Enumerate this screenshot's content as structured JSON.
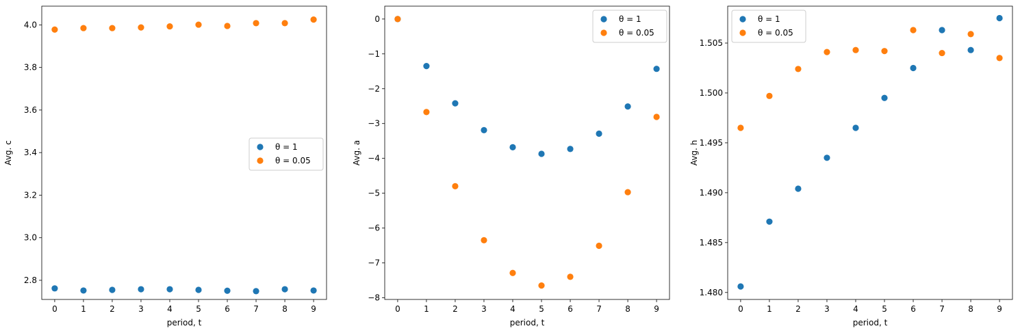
{
  "chart_data": [
    {
      "type": "scatter",
      "xlabel": "period, t",
      "ylabel": "Avg. c",
      "x": [
        0,
        1,
        2,
        3,
        4,
        5,
        6,
        7,
        8,
        9
      ],
      "xticks": [
        "0",
        "1",
        "2",
        "3",
        "4",
        "5",
        "6",
        "7",
        "8",
        "9"
      ],
      "xlim": [
        -0.45,
        9.45
      ],
      "ylim": [
        2.71,
        4.088
      ],
      "yticks": [
        "2.8",
        "3.0",
        "3.2",
        "3.4",
        "3.6",
        "3.8",
        "4.0"
      ],
      "legend_position": "center-right",
      "grid": false,
      "series": [
        {
          "name": "θ = 1",
          "color": "#1f77b4",
          "values": [
            2.762,
            2.752,
            2.755,
            2.758,
            2.758,
            2.755,
            2.751,
            2.749,
            2.758,
            2.752
          ]
        },
        {
          "name": "θ = 0.05",
          "color": "#ff7f0e",
          "values": [
            3.978,
            3.985,
            3.985,
            3.988,
            3.993,
            4.001,
            3.995,
            4.008,
            4.008,
            4.025
          ]
        }
      ]
    },
    {
      "type": "scatter",
      "xlabel": "period, t",
      "ylabel": "Avg. a",
      "x": [
        0,
        1,
        2,
        3,
        4,
        5,
        6,
        7,
        8,
        9
      ],
      "xticks": [
        "0",
        "1",
        "2",
        "3",
        "4",
        "5",
        "6",
        "7",
        "8",
        "9"
      ],
      "xlim": [
        -0.45,
        9.45
      ],
      "ylim": [
        -8.05,
        0.37
      ],
      "yticks": [
        "0",
        "−1",
        "−2",
        "−3",
        "−4",
        "−5",
        "−6",
        "−7",
        "−8"
      ],
      "legend_position": "top-right",
      "grid": false,
      "series": [
        {
          "name": "θ = 1",
          "color": "#1f77b4",
          "values": [
            0.0,
            -1.35,
            -2.42,
            -3.19,
            -3.68,
            -3.87,
            -3.73,
            -3.29,
            -2.51,
            -1.43
          ]
        },
        {
          "name": "θ = 0.05",
          "color": "#ff7f0e",
          "values": [
            0.0,
            -2.67,
            -4.8,
            -6.35,
            -7.29,
            -7.65,
            -7.4,
            -6.51,
            -4.97,
            -2.81
          ]
        }
      ]
    },
    {
      "type": "scatter",
      "xlabel": "period, t",
      "ylabel": "Avg. h",
      "x": [
        0,
        1,
        2,
        3,
        4,
        5,
        6,
        7,
        8,
        9
      ],
      "xticks": [
        "0",
        "1",
        "2",
        "3",
        "4",
        "5",
        "6",
        "7",
        "8",
        "9"
      ],
      "xlim": [
        -0.45,
        9.45
      ],
      "ylim": [
        1.4793,
        1.5087
      ],
      "yticks": [
        "1.480",
        "1.485",
        "1.490",
        "1.495",
        "1.500",
        "1.505"
      ],
      "legend_position": "top-left",
      "grid": false,
      "series": [
        {
          "name": "θ = 1",
          "color": "#1f77b4",
          "values": [
            1.4806,
            1.4871,
            1.4904,
            1.4935,
            1.4965,
            1.4995,
            1.5025,
            1.5063,
            1.5043,
            1.5075
          ]
        },
        {
          "name": "θ = 0.05",
          "color": "#ff7f0e",
          "values": [
            1.4965,
            1.4997,
            1.5024,
            1.5041,
            1.5043,
            1.5042,
            1.5063,
            1.504,
            1.5059,
            1.5035
          ]
        }
      ]
    }
  ]
}
